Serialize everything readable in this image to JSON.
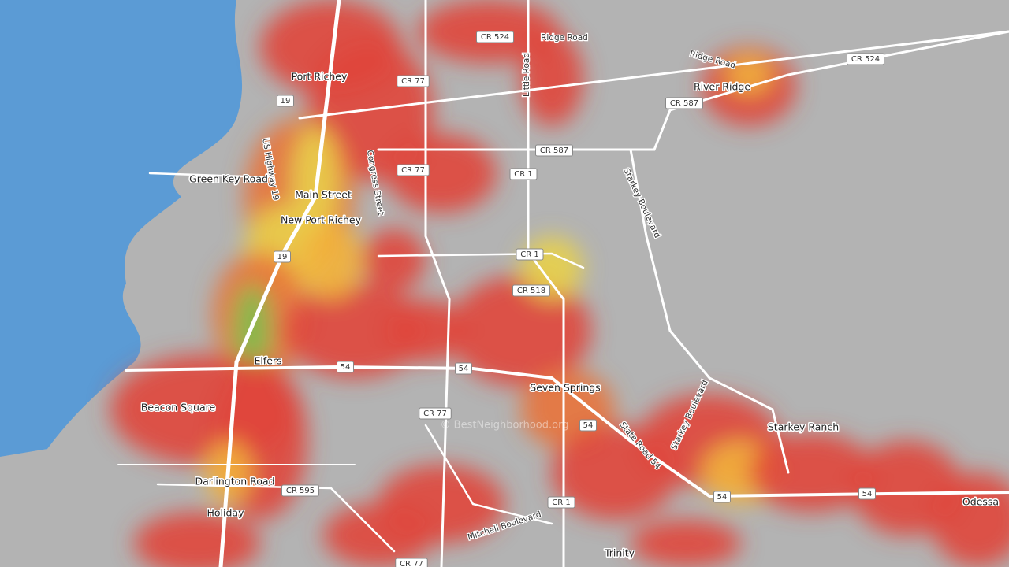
{
  "map": {
    "places": [
      "Port Richey",
      "River Ridge",
      "Main Street",
      "New Port Richey",
      "Elfers",
      "Beacon Square",
      "Seven Springs",
      "Starkey Ranch",
      "Darlington Road",
      "Holiday",
      "Trinity",
      "Odessa",
      "Green Key Road"
    ],
    "roads": [
      "Little Road",
      "Congress Street",
      "US Highway 19",
      "Starkey Boulevard",
      "Starkey Boulevard",
      "State Road 54",
      "Mitchell Boulevard",
      "Ridge Road",
      "Ridge Road"
    ],
    "shields": [
      "CR 524",
      "CR 524",
      "CR 77",
      "CR 77",
      "CR 77",
      "CR 77",
      "CR 587",
      "CR 587",
      "CR 1",
      "CR 1",
      "CR 1",
      "CR 518",
      "19",
      "19",
      "54",
      "54",
      "54",
      "54",
      "54",
      "CR 595"
    ],
    "watermark": "© BestNeighborhood.org"
  }
}
